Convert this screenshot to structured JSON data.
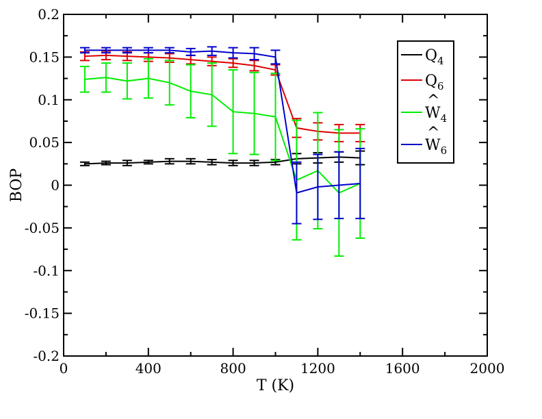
{
  "chart_data": {
    "type": "line",
    "xlabel": "T (K)",
    "ylabel": "BOP",
    "xlim": [
      0,
      2000
    ],
    "ylim": [
      -0.2,
      0.2
    ],
    "x_ticks": [
      0,
      400,
      800,
      1200,
      1600,
      2000
    ],
    "y_ticks": [
      -0.2,
      -0.15,
      -0.1,
      -0.05,
      0,
      0.05,
      0.1,
      0.15,
      0.2
    ],
    "x_tick_labels": [
      "0",
      "400",
      "800",
      "1200",
      "1600",
      "2000"
    ],
    "y_tick_labels": [
      "-0.2",
      "-0.15",
      "-0.1",
      "-0.05",
      "0",
      "0.05",
      "0.1",
      "0.15",
      "0.2"
    ],
    "grid": false,
    "legend_position": "top-right",
    "x": [
      100,
      200,
      300,
      400,
      500,
      600,
      700,
      800,
      900,
      1000,
      1100,
      1200,
      1300,
      1400
    ],
    "series": [
      {
        "name": "Q4",
        "legend_base": "Q",
        "legend_sub": "4",
        "legend_hat": false,
        "color": "#000000",
        "values": [
          0.025,
          0.026,
          0.026,
          0.027,
          0.028,
          0.028,
          0.027,
          0.026,
          0.026,
          0.027,
          0.031,
          0.032,
          0.033,
          0.032
        ],
        "errors": [
          0.002,
          0.002,
          0.003,
          0.002,
          0.003,
          0.003,
          0.003,
          0.003,
          0.003,
          0.003,
          0.006,
          0.006,
          0.006,
          0.008
        ]
      },
      {
        "name": "Q6",
        "legend_base": "Q",
        "legend_sub": "6",
        "legend_hat": false,
        "color": "#dd0000",
        "values": [
          0.151,
          0.152,
          0.151,
          0.15,
          0.149,
          0.147,
          0.145,
          0.143,
          0.14,
          0.135,
          0.067,
          0.063,
          0.061,
          0.061
        ],
        "errors": [
          0.005,
          0.005,
          0.005,
          0.005,
          0.005,
          0.005,
          0.005,
          0.005,
          0.006,
          0.006,
          0.011,
          0.01,
          0.01,
          0.01
        ]
      },
      {
        "name": "W4",
        "legend_base": "W",
        "legend_sub": "4",
        "legend_hat": true,
        "color": "#00ee00",
        "values": [
          0.124,
          0.126,
          0.122,
          0.125,
          0.12,
          0.11,
          0.106,
          0.086,
          0.084,
          0.08,
          0.006,
          0.017,
          -0.009,
          0.002
        ],
        "errors": [
          0.015,
          0.017,
          0.021,
          0.023,
          0.026,
          0.031,
          0.037,
          0.049,
          0.048,
          0.051,
          0.07,
          0.068,
          0.074,
          0.064
        ]
      },
      {
        "name": "W6",
        "legend_base": "W",
        "legend_sub": "6",
        "legend_hat": true,
        "color": "#0000cc",
        "values": [
          0.158,
          0.158,
          0.158,
          0.158,
          0.158,
          0.156,
          0.157,
          0.155,
          0.154,
          0.15,
          -0.009,
          -0.002,
          0.0,
          0.002
        ],
        "errors": [
          0.003,
          0.003,
          0.003,
          0.003,
          0.003,
          0.004,
          0.005,
          0.006,
          0.007,
          0.008,
          0.036,
          0.038,
          0.039,
          0.041
        ]
      }
    ]
  }
}
